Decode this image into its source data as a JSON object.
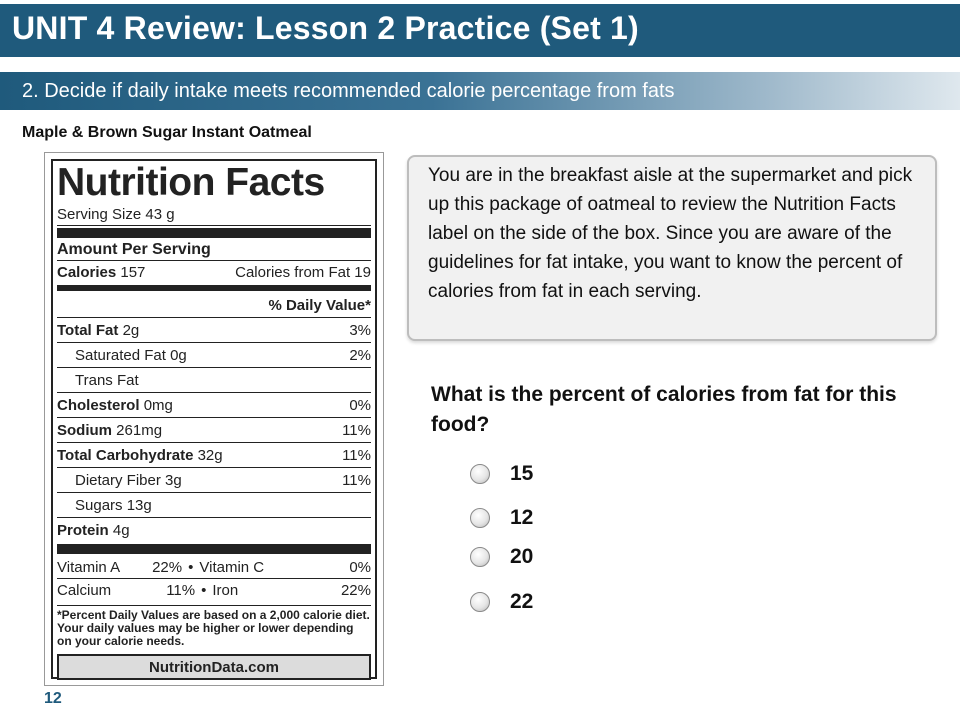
{
  "slide": {
    "title": "UNIT 4 Review: Lesson 2 Practice (Set 1)",
    "subtitle": "2. Decide if daily intake meets recommended calorie percentage from fats",
    "product_name": "Maple & Brown Sugar Instant Oatmeal",
    "page_number": "12",
    "colors": {
      "title_bar": "#1f5a7c",
      "page_number": "#1f5a7c"
    }
  },
  "nutrition": {
    "title": "Nutrition Facts",
    "serving_size": "Serving Size  43 g",
    "amount_per_serving": "Amount Per Serving",
    "calories_label": "Calories",
    "calories_value": "157",
    "calories_from_fat": "Calories from Fat 19",
    "daily_value_header": "% Daily Value*",
    "rows": [
      {
        "label": "Total Fat",
        "amount": "2g",
        "dv": "3%"
      },
      {
        "label": "Saturated Fat",
        "amount": "0g",
        "dv": "2%"
      },
      {
        "label": "Trans Fat",
        "amount": "",
        "dv": ""
      },
      {
        "label": "Cholesterol",
        "amount": "0mg",
        "dv": "0%"
      },
      {
        "label": "Sodium",
        "amount": "261mg",
        "dv": "11%"
      },
      {
        "label": "Total Carbohydrate",
        "amount": "32g",
        "dv": "11%"
      },
      {
        "label": "Dietary Fiber",
        "amount": "3g",
        "dv": "11%"
      },
      {
        "label": "Sugars",
        "amount": "13g",
        "dv": ""
      },
      {
        "label": "Protein",
        "amount": "4g",
        "dv": ""
      }
    ],
    "vitamins": [
      {
        "left_name": "Vitamin A",
        "left_value": "22%",
        "right_name": "Vitamin C",
        "right_value": "0%"
      },
      {
        "left_name": "Calcium",
        "left_value": "11%",
        "right_name": "Iron",
        "right_value": "22%"
      }
    ],
    "bullet": "•",
    "footnote": "*Percent Daily Values are based on a 2,000 calorie diet. Your daily values may be higher or lower depending on your calorie needs.",
    "brand": "NutritionData.com"
  },
  "info_text": "You are in the breakfast aisle at the supermarket and pick up this package of oatmeal to review the Nutrition Facts label on the side of the box. Since you are aware of the guidelines for fat intake, you want to know the percent of calories from fat in each serving.",
  "question": "What is the percent of calories from fat for this food?",
  "options": [
    "15",
    "12",
    "20",
    "22"
  ]
}
